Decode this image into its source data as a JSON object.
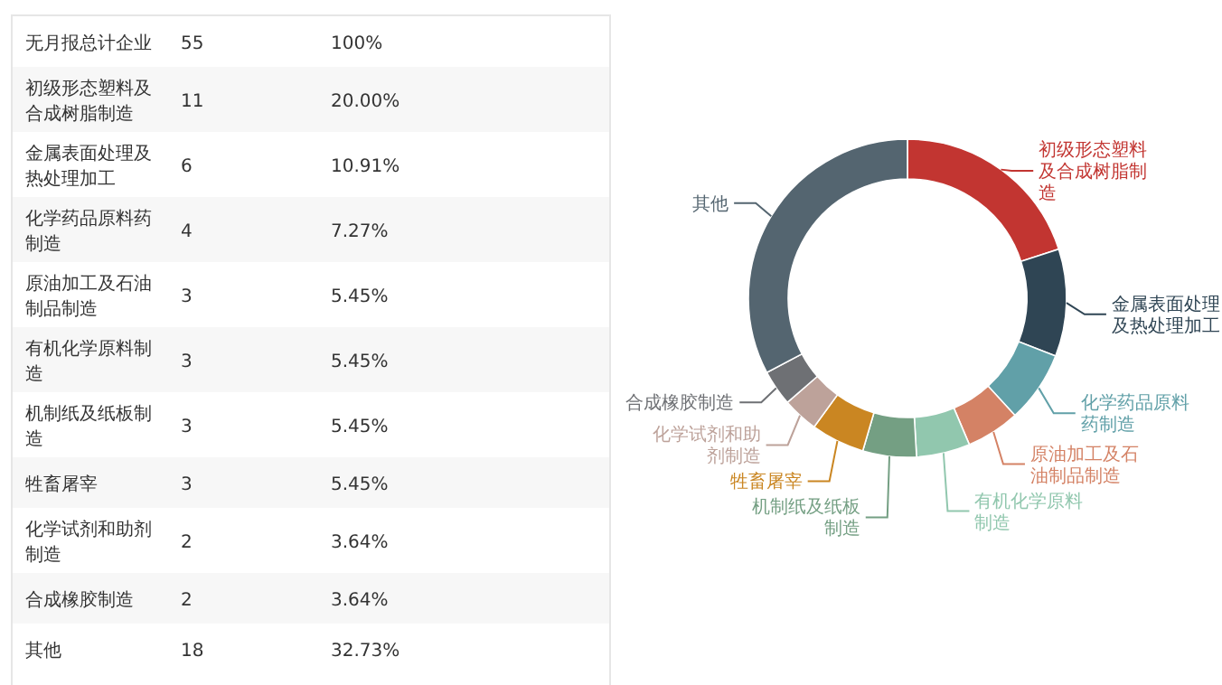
{
  "chart_data": [
    {
      "type": "other",
      "annotations": [
        "无月报总计企业",
        "55",
        "100%",
        "初级形态塑料及合成树脂制造",
        "11",
        "20.00%",
        "金属表面处理及热处理加工",
        "6",
        "10.91%",
        "化学药品原料药制造",
        "4",
        "7.27%",
        "原油加工及石油制品制造",
        "3",
        "5.45%",
        "有机化学原料制造",
        "3",
        "5.45%",
        "机制纸及纸板制造",
        "3",
        "5.45%",
        "牲畜屠宰",
        "3",
        "5.45%",
        "化学试剂和助剂制造",
        "2",
        "3.64%",
        "合成橡胶制造",
        "2",
        "3.64%",
        "其他",
        "18",
        "32.73%"
      ]
    },
    {
      "type": "donut",
      "categories": [
        "初级形态塑料及合成树脂制造",
        "金属表面处理及热处理加工",
        "化学药品原料药制造",
        "原油加工及石油制品制造",
        "有机化学原料制造",
        "机制纸及纸板制造",
        "牲畜屠宰",
        "化学试剂和助剂制造",
        "合成橡胶制造",
        "其他"
      ],
      "values": [
        20.0,
        10.91,
        7.27,
        5.45,
        5.45,
        5.45,
        5.45,
        3.64,
        3.64,
        32.73
      ],
      "colors": [
        "#c23531",
        "#2f4554",
        "#61a0a8",
        "#d48265",
        "#91c7ae",
        "#749f83",
        "#ca8622",
        "#bda29a",
        "#6e7074",
        "#546570"
      ]
    }
  ]
}
